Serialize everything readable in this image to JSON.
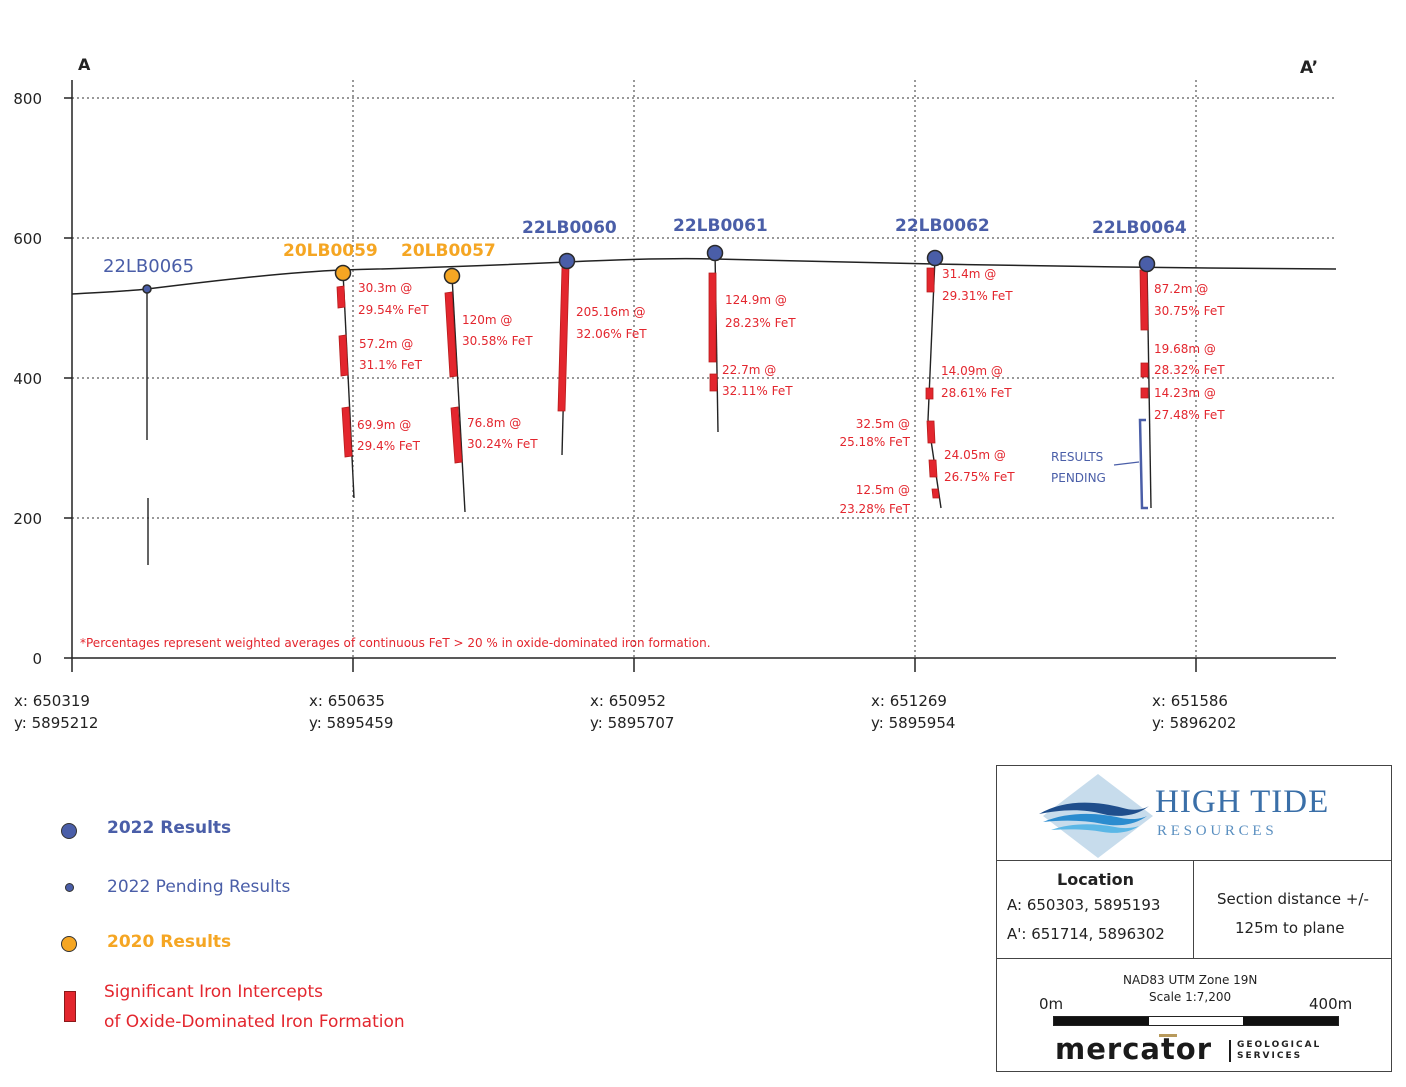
{
  "section": {
    "end_label_left": "A",
    "end_label_right": "A’",
    "y_axis_ticks": [
      "800",
      "600",
      "400",
      "200",
      "0"
    ],
    "footnote": "*Percentages represent weighted averages of continuous FeT > 20 % in oxide-dominated iron formation.",
    "x_coords": [
      {
        "x": "x: 650319",
        "y": "y: 5895212"
      },
      {
        "x": "x: 650635",
        "y": "y: 5895459"
      },
      {
        "x": "x: 650952",
        "y": "y: 5895707"
      },
      {
        "x": "x: 651269",
        "y": "y: 5895954"
      },
      {
        "x": "x: 651586",
        "y": "y: 5896202"
      }
    ],
    "holes": [
      {
        "id": "22LB0065",
        "status": "pending"
      },
      {
        "id": "20LB0059",
        "status": "2020"
      },
      {
        "id": "20LB0057",
        "status": "2020"
      },
      {
        "id": "22LB0060",
        "status": "2022"
      },
      {
        "id": "22LB0061",
        "status": "2022"
      },
      {
        "id": "22LB0062",
        "status": "2022"
      },
      {
        "id": "22LB0064",
        "status": "2022"
      }
    ],
    "intercepts": [
      {
        "l1": "30.3m @",
        "l2": "29.54% FeT"
      },
      {
        "l1": "57.2m @",
        "l2": "31.1% FeT"
      },
      {
        "l1": "69.9m @",
        "l2": "29.4% FeT"
      },
      {
        "l1": "120m @",
        "l2": "30.58% FeT"
      },
      {
        "l1": "76.8m @",
        "l2": "30.24% FeT"
      },
      {
        "l1": "205.16m @",
        "l2": "32.06% FeT"
      },
      {
        "l1": "124.9m @",
        "l2": "28.23% FeT"
      },
      {
        "l1": "22.7m @",
        "l2": "32.11% FeT"
      },
      {
        "l1": "31.4m @",
        "l2": "29.31% FeT"
      },
      {
        "l1": "14.09m @",
        "l2": "28.61% FeT"
      },
      {
        "l1": "32.5m @",
        "l2": "25.18% FeT"
      },
      {
        "l1": "24.05m @",
        "l2": "26.75% FeT"
      },
      {
        "l1": "12.5m @",
        "l2": "23.28% FeT"
      },
      {
        "l1": "87.2m @",
        "l2": "30.75% FeT"
      },
      {
        "l1": "19.68m @",
        "l2": "28.32% FeT"
      },
      {
        "l1": "14.23m @",
        "l2": "27.48% FeT"
      }
    ],
    "pending_label_1": "RESULTS",
    "pending_label_2": "PENDING"
  },
  "legend": {
    "results_2022": "2022 Results",
    "pending_2022": "2022 Pending Results",
    "results_2020": "2020 Results",
    "intercepts_line1": "Significant Iron Intercepts",
    "intercepts_line2": "of Oxide-Dominated Iron Formation"
  },
  "title_block": {
    "logo_name": "HIGH TIDE",
    "logo_sub": "R E S O U R C E S",
    "location_title": "Location",
    "point_a": "A:  650303, 5895193",
    "point_a_prime": "A': 651714, 5896302",
    "section_distance_1": "Section distance +/-",
    "section_distance_2": "125m to plane",
    "datum": "NAD83 UTM Zone 19N",
    "scale": "Scale 1:7,200",
    "scale_start": "0m",
    "scale_end": "400m",
    "mercator_word": "mercator",
    "mercator_sub_1": "GEOLOGICAL",
    "mercator_sub_2": "SERVICES"
  },
  "colors": {
    "blue_2022": "#4a5ea8",
    "orange_2020": "#f5a623",
    "red_intercept": "#e3262e",
    "grid": "#333333"
  }
}
